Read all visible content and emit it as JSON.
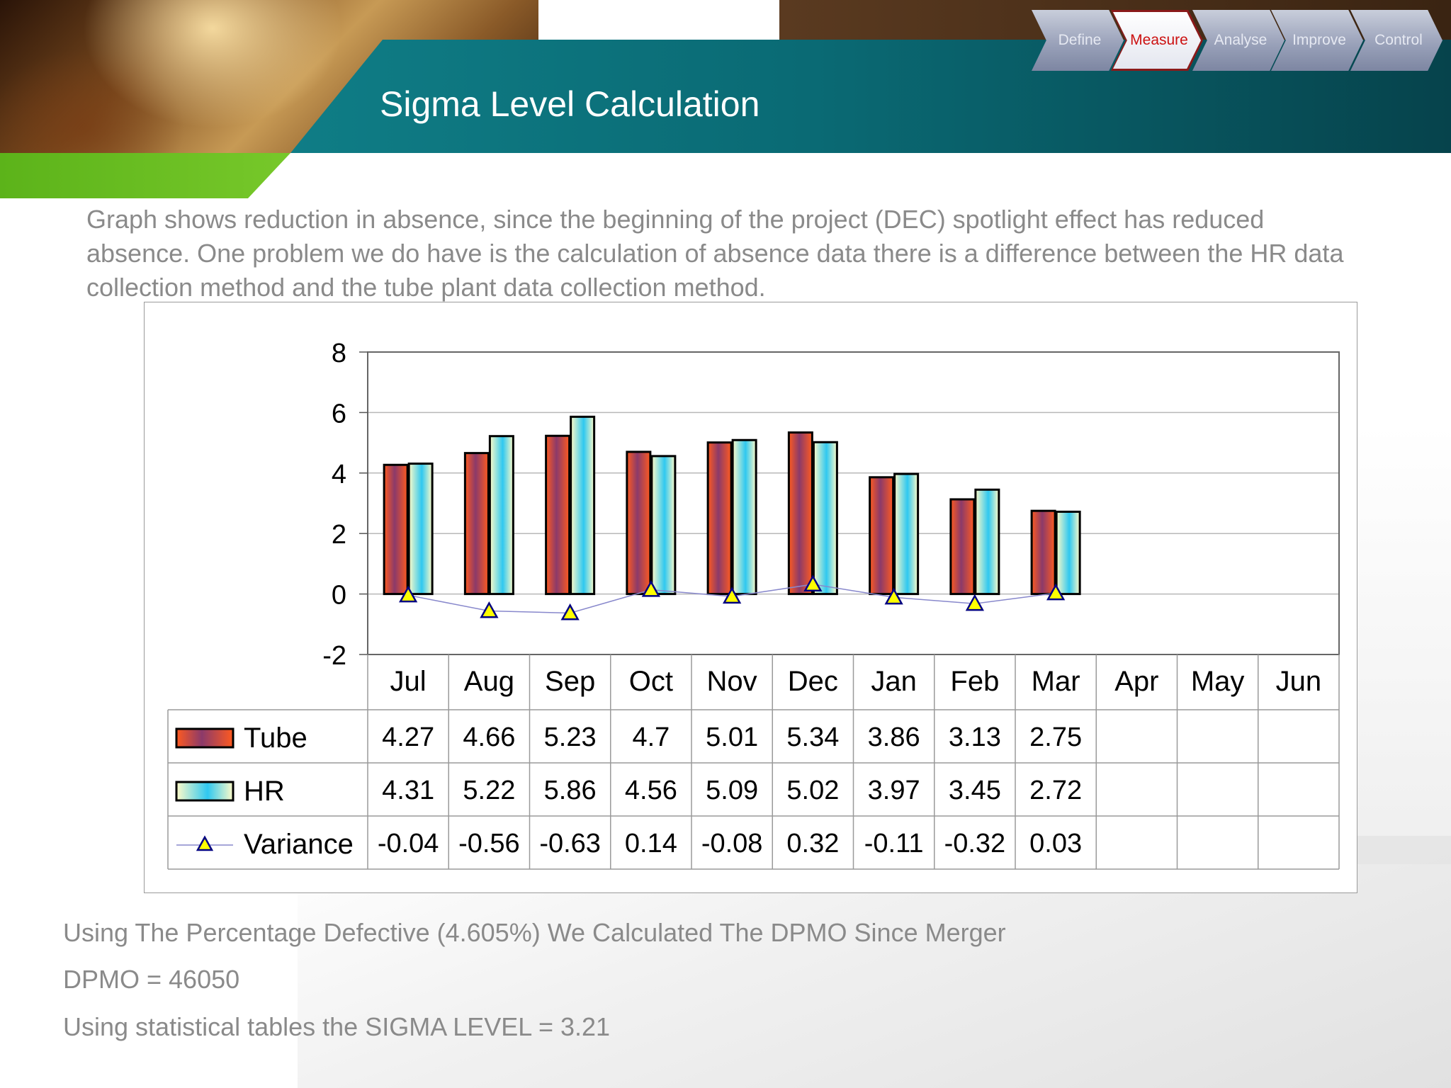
{
  "header": {
    "title": "Sigma Level Calculation",
    "dmaic_steps": [
      {
        "label": "Define",
        "active": false
      },
      {
        "label": "Measure",
        "active": true
      },
      {
        "label": "Analyse",
        "active": false
      },
      {
        "label": "Improve",
        "active": false
      },
      {
        "label": "Control",
        "active": false
      }
    ]
  },
  "intro_text": "Graph shows reduction in absence, since the beginning of the project (DEC) spotlight effect has reduced absence. One problem we do have is the calculation of absence data there is a difference between the HR data collection method and the tube plant data collection method.",
  "chart_data": {
    "type": "bar",
    "title": "",
    "xlabel": "",
    "ylabel": "",
    "ylim": [
      -2,
      8
    ],
    "yticks": [
      "8",
      "6",
      "4",
      "2",
      "0",
      "-2"
    ],
    "grid": true,
    "categories": [
      "Jul",
      "Aug",
      "Sep",
      "Oct",
      "Nov",
      "Dec",
      "Jan",
      "Feb",
      "Mar",
      "Apr",
      "May",
      "Jun"
    ],
    "series": [
      {
        "name": "Tube",
        "kind": "bar",
        "values": [
          4.27,
          4.66,
          5.23,
          4.7,
          5.01,
          5.34,
          3.86,
          3.13,
          2.75,
          null,
          null,
          null
        ],
        "labels": [
          "4.27",
          "4.66",
          "5.23",
          "4.7",
          "5.01",
          "5.34",
          "3.86",
          "3.13",
          "2.75",
          "",
          "",
          ""
        ]
      },
      {
        "name": "HR",
        "kind": "bar",
        "values": [
          4.31,
          5.22,
          5.86,
          4.56,
          5.09,
          5.02,
          3.97,
          3.45,
          2.72,
          null,
          null,
          null
        ],
        "labels": [
          "4.31",
          "5.22",
          "5.86",
          "4.56",
          "5.09",
          "5.02",
          "3.97",
          "3.45",
          "2.72",
          "",
          "",
          ""
        ]
      },
      {
        "name": "Variance",
        "kind": "line",
        "values": [
          -0.04,
          -0.56,
          -0.63,
          0.14,
          -0.08,
          0.32,
          -0.11,
          -0.32,
          0.03,
          null,
          null,
          null
        ],
        "labels": [
          "-0.04",
          "-0.56",
          "-0.63",
          "0.14",
          "-0.08",
          "0.32",
          "-0.11",
          "-0.32",
          "0.03",
          "",
          "",
          ""
        ]
      }
    ],
    "data_table": true,
    "colors": {
      "tube_dark": "#8b3a6a",
      "tube_light": "#ff5a1f",
      "hr_light": "#fffbc8",
      "hr_mid": "#2fc8f0",
      "variance_line": "#8888cc",
      "variance_marker": "#ffff00"
    }
  },
  "footer": {
    "line1": "Using The Percentage Defective (4.605%) We Calculated The DPMO Since Merger",
    "line2": "DPMO = 46050",
    "line3": "Using statistical tables the SIGMA LEVEL = 3.21"
  }
}
